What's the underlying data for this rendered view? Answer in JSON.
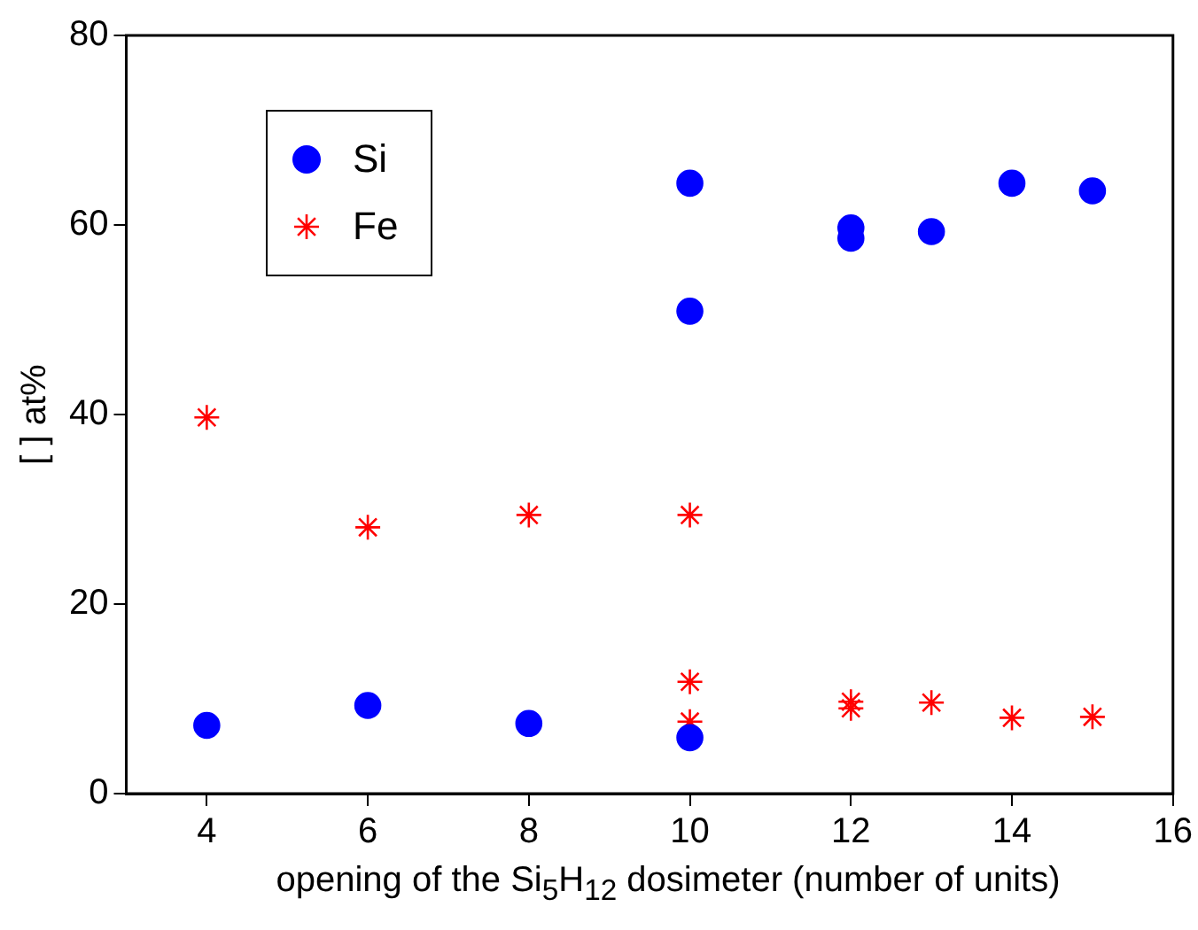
{
  "chart_data": {
    "type": "scatter",
    "xlabel": "opening of the Si$_{5}$H$_{12}$ dosimeter (number of units)",
    "ylabel": "[ ] at%",
    "xlim": [
      3,
      16
    ],
    "xticks": [
      4,
      6,
      8,
      10,
      12,
      14,
      16
    ],
    "ylim": [
      0,
      80
    ],
    "yticks": [
      0,
      20,
      40,
      60,
      80
    ],
    "grid": false,
    "legend": "top left",
    "series": [
      {
        "name": "Si",
        "color": "#0000ff",
        "marker": "circle",
        "x": [
          4,
          6,
          8,
          10,
          10,
          10,
          12,
          12,
          13,
          14,
          15
        ],
        "values": [
          7.2,
          9.3,
          7.4,
          5.9,
          50.9,
          64.4,
          58.6,
          59.7,
          59.3,
          64.4,
          63.6
        ]
      },
      {
        "name": "Fe",
        "color": "#ff0000",
        "marker": "cross",
        "x": [
          4,
          6,
          8,
          10,
          10,
          10,
          12,
          12,
          13,
          14,
          15
        ],
        "values": [
          39.7,
          28.1,
          29.4,
          29.4,
          11.8,
          7.6,
          9.7,
          9.0,
          9.6,
          8.0,
          8.1
        ]
      }
    ]
  }
}
